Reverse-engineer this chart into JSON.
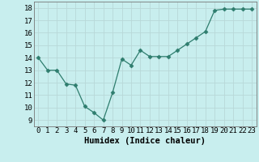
{
  "x": [
    0,
    1,
    2,
    3,
    4,
    5,
    6,
    7,
    8,
    9,
    10,
    11,
    12,
    13,
    14,
    15,
    16,
    17,
    18,
    19,
    20,
    21,
    22,
    23
  ],
  "y": [
    14.0,
    13.0,
    13.0,
    11.9,
    11.8,
    10.1,
    9.6,
    9.0,
    11.2,
    13.9,
    13.4,
    14.6,
    14.1,
    14.1,
    14.1,
    14.6,
    15.1,
    15.6,
    16.1,
    17.8,
    17.9,
    17.9,
    17.9,
    17.9
  ],
  "line_color": "#2e7d6e",
  "marker": "D",
  "marker_size": 2.5,
  "bg_color": "#c8eeee",
  "grid_color": "#b8d8d8",
  "xlabel": "Humidex (Indice chaleur)",
  "ylim": [
    8.5,
    18.5
  ],
  "xlim": [
    -0.5,
    23.5
  ],
  "yticks": [
    9,
    10,
    11,
    12,
    13,
    14,
    15,
    16,
    17,
    18
  ],
  "xtick_labels": [
    "0",
    "1",
    "2",
    "3",
    "4",
    "5",
    "6",
    "7",
    "8",
    "9",
    "10",
    "11",
    "12",
    "13",
    "14",
    "15",
    "16",
    "17",
    "18",
    "19",
    "20",
    "21",
    "22",
    "23"
  ],
  "tick_font_size": 6.5,
  "xlabel_font_size": 7.5
}
